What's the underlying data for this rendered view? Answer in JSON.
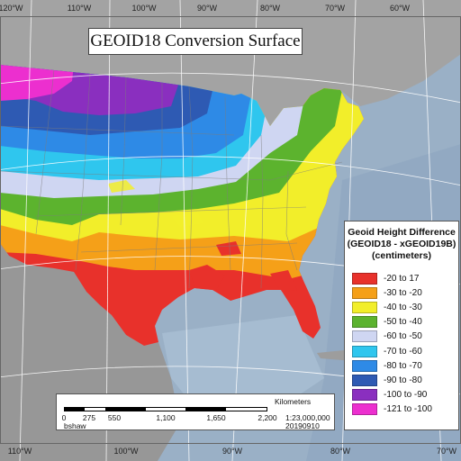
{
  "title": "GEOID18 Conversion Surface",
  "longitude_labels_top": [
    "120°W",
    "110°W",
    "100°W",
    "90°W",
    "80°W",
    "70°W",
    "60°W"
  ],
  "longitude_labels_bottom": [
    "110°W",
    "100°W",
    "90°W",
    "80°W",
    "70°W"
  ],
  "legend": {
    "title_lines": [
      "Geoid Height Difference",
      "(GEOID18 - xGEOID19B)",
      "(centimeters)"
    ],
    "classes": [
      {
        "label": "-20 to 17",
        "color": "#e8312b"
      },
      {
        "label": "-30 to -20",
        "color": "#f5a018"
      },
      {
        "label": "-40 to -30",
        "color": "#f2ee2a"
      },
      {
        "label": "-50 to -40",
        "color": "#5cb32e"
      },
      {
        "label": "-60 to -50",
        "color": "#cfd6f2"
      },
      {
        "label": "-70 to -60",
        "color": "#2fc6ee"
      },
      {
        "label": "-80 to -70",
        "color": "#2e8ae6"
      },
      {
        "label": "-90 to -80",
        "color": "#2e5ab3"
      },
      {
        "label": "-100 to -90",
        "color": "#8a2fbf"
      },
      {
        "label": "-121 to -100",
        "color": "#ec2fcf"
      }
    ]
  },
  "scalebar": {
    "units": "Kilometers",
    "ticks": [
      "0",
      "275",
      "550",
      "1,100",
      "1,650",
      "2,200"
    ],
    "scale": "1:23,000,000",
    "author": "bshaw",
    "date": "20190910"
  },
  "colors": {
    "ocean": "#9ab0c6",
    "land": "#9b9b9b",
    "graticule": "#ffffff",
    "state_lines": "#8a8a8a"
  }
}
